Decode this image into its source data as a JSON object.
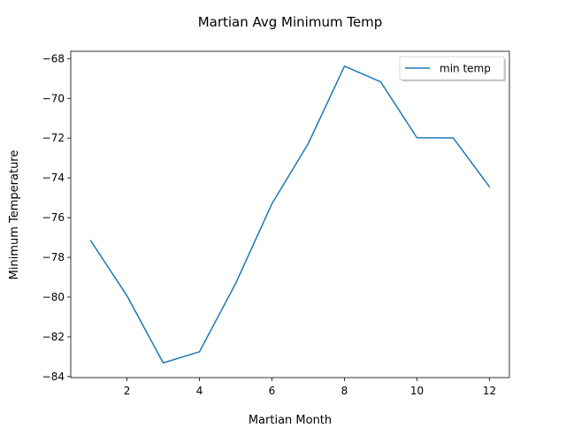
{
  "chart_data": {
    "type": "line",
    "title": "Martian Avg Minimum Temp",
    "xlabel": "Martian Month",
    "ylabel": "Minimum Temperature",
    "x": [
      1,
      2,
      3,
      4,
      5,
      6,
      7,
      8,
      9,
      10,
      11,
      12
    ],
    "series": [
      {
        "name": "min temp",
        "color": "#1f77b4",
        "values": [
          -77.16,
          -79.93,
          -83.31,
          -82.75,
          -79.31,
          -75.3,
          -72.28,
          -68.38,
          -69.17,
          -71.98,
          -71.99,
          -74.45
        ]
      }
    ],
    "xlim": [
      0.45,
      12.55
    ],
    "ylim": [
      -84.05,
      -67.63
    ],
    "xticks": [
      2,
      4,
      6,
      8,
      10,
      12
    ],
    "xtick_labels": [
      "2",
      "4",
      "6",
      "8",
      "10",
      "12"
    ],
    "yticks": [
      -84,
      -82,
      -80,
      -78,
      -76,
      -74,
      -72,
      -70,
      -68
    ],
    "ytick_labels": [
      "−84",
      "−82",
      "−80",
      "−78",
      "−76",
      "−74",
      "−72",
      "−70",
      "−68"
    ],
    "grid": false,
    "legend_position": "top-right"
  }
}
